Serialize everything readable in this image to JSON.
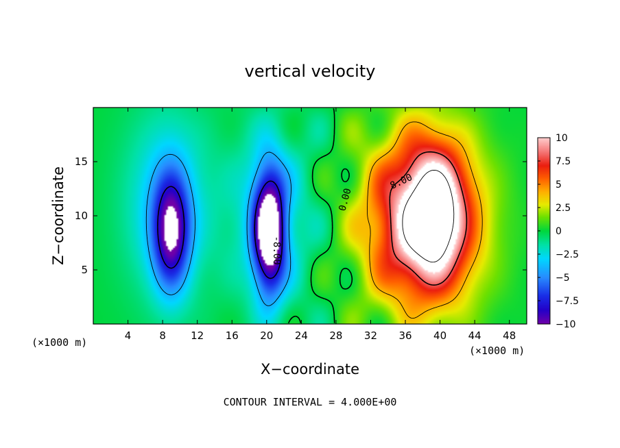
{
  "chart_data": {
    "type": "heatmap",
    "title": "vertical velocity",
    "xlabel": "X−coordinate",
    "ylabel": "Z−coordinate",
    "x_unit": "(×1000 m)",
    "xlim": [
      0,
      50
    ],
    "ylim": [
      0,
      20
    ],
    "x_ticks": [
      4,
      8,
      12,
      16,
      20,
      24,
      28,
      32,
      36,
      40,
      44,
      48
    ],
    "y_ticks": [
      5,
      10,
      15
    ],
    "footer": "CONTOUR INTERVAL = 4.000E+00",
    "colorbar": {
      "min": -10,
      "max": 10,
      "ticks": [
        "10",
        "7.5",
        "5",
        "2.5",
        "0",
        "−2.5",
        "−5",
        "−7.5",
        "−10"
      ],
      "tick_values": [
        10,
        7.5,
        5,
        2.5,
        0,
        -2.5,
        -5,
        -7.5,
        -10
      ]
    },
    "contour_labels": [
      {
        "text": "0.00",
        "x": 29.0,
        "y": 11.5,
        "rotate": -75
      },
      {
        "text": "8.00",
        "x": 35.5,
        "y": 13.2,
        "rotate": -25
      },
      {
        "text": "-8.00",
        "x": 21.2,
        "y": 6.8,
        "rotate": 90
      }
    ],
    "features": [
      {
        "kind": "downdraft",
        "x": 9.0,
        "z": 8.5,
        "amp": -8.5,
        "sx": 1.5,
        "sz": 3.8
      },
      {
        "kind": "downdraft",
        "x": 20.3,
        "z": 8.5,
        "amp": -11.5,
        "sx": 1.3,
        "sz": 4.0
      },
      {
        "kind": "downdraft",
        "x": 8.5,
        "z": 11.0,
        "amp": -3.5,
        "sx": 3.5,
        "sz": 6.0
      },
      {
        "kind": "downdraft",
        "x": 20.5,
        "z": 10.0,
        "amp": -3.0,
        "sx": 3.5,
        "sz": 6.0
      },
      {
        "kind": "updraft",
        "x": 38.0,
        "z": 9.5,
        "amp": 11.5,
        "sx": 4.5,
        "sz": 5.5
      },
      {
        "kind": "updraft",
        "x": 39.5,
        "z": 10.5,
        "amp": 6.0,
        "sx": 2.2,
        "sz": 4.0
      }
    ]
  }
}
